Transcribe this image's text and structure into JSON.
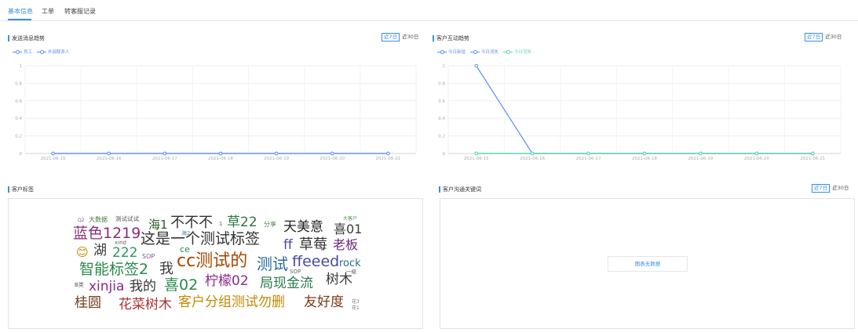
{
  "tabs": [
    {
      "label": "基本信息",
      "active": true
    },
    {
      "label": "工单",
      "active": false
    },
    {
      "label": "转客服记录",
      "active": false
    }
  ],
  "colors": {
    "accent": "#3a8ee6",
    "series_blue": "#5b8ff9",
    "series_teal": "#5ad8a6"
  },
  "send_trend": {
    "title": "发送消息趋势",
    "range_buttons": [
      "近7日",
      "近30日"
    ],
    "selected_range": "近7日",
    "legend": [
      "员工",
      "外部联系人"
    ]
  },
  "interaction_trend": {
    "title": "客户互动趋势",
    "range_buttons": [
      "近7日",
      "近30日"
    ],
    "selected_range": "近7日",
    "legend": [
      "今日新增",
      "今日流失",
      "今日流失"
    ]
  },
  "tags_panel": {
    "title": "客户标签"
  },
  "keywords_panel": {
    "title": "客户沟通关键词",
    "range_buttons": [
      "近7日",
      "近30日"
    ],
    "selected_range": "近7日",
    "empty_text": "图表无数据"
  },
  "chart_data": [
    {
      "type": "line",
      "x": [
        "2021-06-15",
        "2021-06-16",
        "2021-06-17",
        "2021-06-18",
        "2021-06-19",
        "2021-06-20",
        "2021-06-21"
      ],
      "yticks": [
        "1",
        "0.8",
        "0.6",
        "0.4",
        "0.2",
        "0"
      ],
      "ylim": [
        0,
        1
      ],
      "grid": true,
      "legend_position": "top-left",
      "series": [
        {
          "name": "员工",
          "values": [
            0,
            0,
            0,
            0,
            0,
            0,
            0
          ]
        },
        {
          "name": "外部联系人",
          "values": [
            0,
            0,
            0,
            0,
            0,
            0,
            0
          ]
        }
      ]
    },
    {
      "type": "line",
      "x": [
        "2021-06-15",
        "2021-06-16",
        "2021-06-17",
        "2021-06-18",
        "2021-06-19",
        "2021-06-20",
        "2021-06-21"
      ],
      "yticks": [
        "1",
        "0.8",
        "0.6",
        "0.4",
        "0.2",
        "0"
      ],
      "ylim": [
        0,
        1
      ],
      "grid": true,
      "legend_position": "top-left",
      "series": [
        {
          "name": "今日新增",
          "values": [
            1,
            0,
            0,
            0,
            0,
            0,
            0
          ]
        },
        {
          "name": "今日流失",
          "values": [
            0,
            0,
            0,
            0,
            0,
            0,
            0
          ]
        },
        {
          "name": "今日流失",
          "values": [
            0,
            0,
            0,
            0,
            0,
            0,
            0
          ]
        }
      ]
    }
  ],
  "word_cloud": [
    {
      "t": "Q2"
    },
    {
      "t": "大数据"
    },
    {
      "t": "测试试试"
    },
    {
      "t": "海1"
    },
    {
      "t": "不不不"
    },
    {
      "t": "1"
    },
    {
      "t": "草22"
    },
    {
      "t": "分享"
    },
    {
      "t": "天美意"
    },
    {
      "t": "大客户"
    },
    {
      "t": "喜01"
    },
    {
      "t": "蓝色1219"
    },
    {
      "t": "这是一个测试标签"
    },
    {
      "t": "海2"
    },
    {
      "t": "xind"
    },
    {
      "t": "😊"
    },
    {
      "t": "湖"
    },
    {
      "t": "222"
    },
    {
      "t": "ce"
    },
    {
      "t": "ff"
    },
    {
      "t": "草莓"
    },
    {
      "t": "老板"
    },
    {
      "t": "SOP"
    },
    {
      "t": "cc测试的"
    },
    {
      "t": "测试"
    },
    {
      "t": "ffeeed"
    },
    {
      "t": "rock"
    },
    {
      "t": "智能标签2"
    },
    {
      "t": "我"
    },
    {
      "t": "一级"
    },
    {
      "t": "SOP"
    },
    {
      "t": "B类"
    },
    {
      "t": "xinjia"
    },
    {
      "t": "我的"
    },
    {
      "t": "喜02"
    },
    {
      "t": "柠檬02"
    },
    {
      "t": "局现金流"
    },
    {
      "t": "树木"
    },
    {
      "t": "桂圆"
    },
    {
      "t": "花菜树木"
    },
    {
      "t": "客户分组测试勿删"
    },
    {
      "t": "友好度"
    },
    {
      "t": "花3"
    },
    {
      "t": "花1"
    }
  ]
}
